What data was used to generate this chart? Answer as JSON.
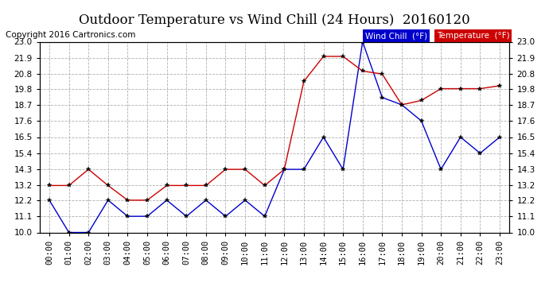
{
  "title": "Outdoor Temperature vs Wind Chill (24 Hours)  20160120",
  "copyright": "Copyright 2016 Cartronics.com",
  "hours": [
    "00:00",
    "01:00",
    "02:00",
    "03:00",
    "04:00",
    "05:00",
    "06:00",
    "07:00",
    "08:00",
    "09:00",
    "10:00",
    "11:00",
    "12:00",
    "13:00",
    "14:00",
    "15:00",
    "16:00",
    "17:00",
    "18:00",
    "19:00",
    "20:00",
    "21:00",
    "22:00",
    "23:00"
  ],
  "temperature": [
    13.2,
    13.2,
    14.3,
    13.2,
    12.2,
    12.2,
    13.2,
    13.2,
    13.2,
    14.3,
    14.3,
    13.2,
    14.3,
    20.3,
    22.0,
    22.0,
    21.0,
    20.8,
    18.7,
    19.0,
    19.8,
    19.8,
    19.8,
    20.0
  ],
  "wind_chill": [
    12.2,
    10.0,
    10.0,
    12.2,
    11.1,
    11.1,
    12.2,
    11.1,
    12.2,
    11.1,
    12.2,
    11.1,
    14.3,
    14.3,
    16.5,
    14.3,
    23.0,
    19.2,
    18.7,
    17.6,
    14.3,
    16.5,
    15.4,
    16.5
  ],
  "ylim_min": 10.0,
  "ylim_max": 23.0,
  "yticks": [
    10.0,
    11.1,
    12.2,
    13.2,
    14.3,
    15.4,
    16.5,
    17.6,
    18.7,
    19.8,
    20.8,
    21.9,
    23.0
  ],
  "temp_color": "#cc0000",
  "wind_color": "#0000cc",
  "legend_wind_bg": "#0000cc",
  "legend_temp_bg": "#cc0000",
  "bg_color": "#ffffff",
  "plot_bg_color": "#ffffff",
  "grid_color": "#b0b0b0",
  "title_fontsize": 12,
  "label_fontsize": 7.5,
  "copyright_fontsize": 7.5,
  "legend_fontsize": 7.5
}
